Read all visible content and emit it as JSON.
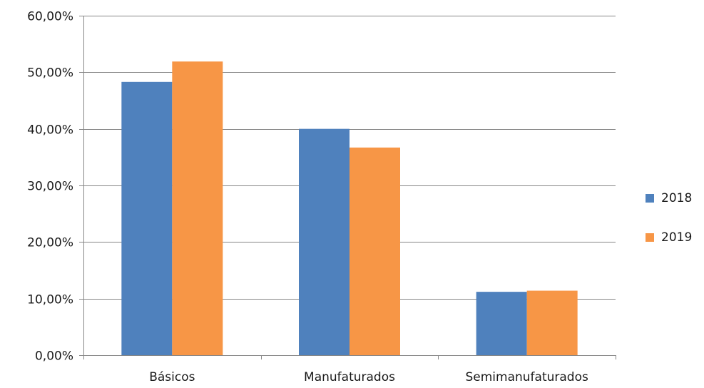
{
  "chart_data": {
    "type": "bar",
    "title": "",
    "xlabel": "",
    "ylabel": "",
    "categories": [
      "Básicos",
      "Manufaturados",
      "Semimanufaturados"
    ],
    "series": [
      {
        "name": "2018",
        "color": "#4f81bd",
        "values": [
          48.3,
          40.0,
          11.2
        ]
      },
      {
        "name": "2019",
        "color": "#f79646",
        "values": [
          51.9,
          36.7,
          11.4
        ]
      }
    ],
    "ylim": [
      0,
      60
    ],
    "yticks": [
      0,
      10,
      20,
      30,
      40,
      50,
      60
    ],
    "ytick_labels": [
      "0,00%",
      "10,00%",
      "20,00%",
      "30,00%",
      "40,00%",
      "50,00%",
      "60,00%"
    ],
    "grid": true,
    "legend_position": "right"
  }
}
